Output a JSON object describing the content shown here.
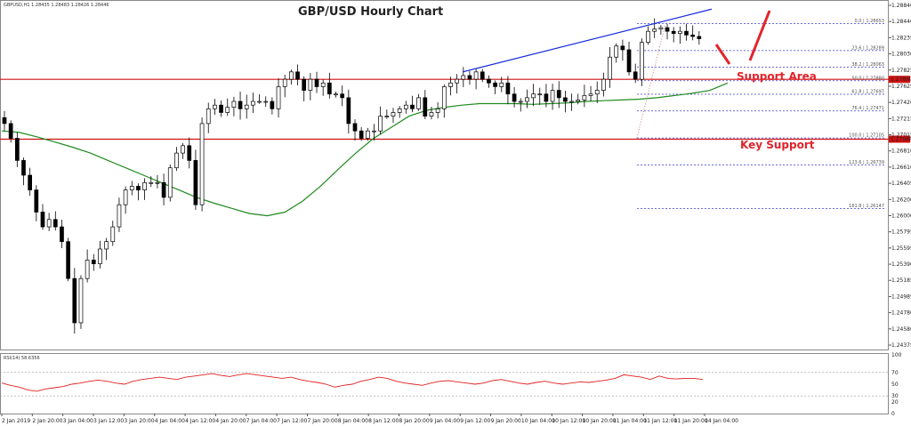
{
  "chart_data": [
    {
      "type": "candlestick",
      "symbol_header": "GBPUSD,H1  1.28435 1.28483 1.28426 1.28446",
      "title": "GBP/USD Hourly Chart",
      "ylim": [
        1.2425,
        1.2895
      ],
      "y_ticks": [
        "1.28840",
        "1.28440",
        "1.28235",
        "1.28030",
        "1.27825",
        "1.27625",
        "1.27420",
        "1.27215",
        "1.27015",
        "1.26810",
        "1.26610",
        "1.26405",
        "1.26200",
        "1.26000",
        "1.25795",
        "1.25595",
        "1.25390",
        "1.25185",
        "1.24985",
        "1.24780",
        "1.24580",
        "1.24375"
      ],
      "x_ticks": [
        "2 Jan 2019",
        "2 Jan 20:00",
        "3 Jan 04:00",
        "3 Jan 12:00",
        "3 Jan 20:00",
        "4 Jan 04:00",
        "4 Jan 12:00",
        "4 Jan 20:00",
        "7 Jan 04:00",
        "7 Jan 12:00",
        "7 Jan 20:00",
        "8 Jan 04:00",
        "8 Jan 12:00",
        "8 Jan 20:00",
        "9 Jan 04:00",
        "9 Jan 12:00",
        "9 Jan 20:00",
        "10 Jan 04:00",
        "10 Jan 12:00",
        "10 Jan 20:00",
        "11 Jan 04:00",
        "11 Jan 12:00",
        "11 Jan 20:00",
        "14 Jan 04:00"
      ],
      "close_path": [
        1.273,
        1.271,
        1.268,
        1.266,
        1.264,
        1.261,
        1.259,
        1.26,
        1.259,
        1.257,
        1.252,
        1.246,
        1.252,
        1.2545,
        1.254,
        1.256,
        1.257,
        1.259,
        1.262,
        1.264,
        1.2645,
        1.264,
        1.265,
        1.265,
        1.265,
        1.263,
        1.267,
        1.269,
        1.27,
        1.268,
        1.262,
        1.273,
        1.275,
        1.2755,
        1.2745,
        1.2752,
        1.276,
        1.275,
        1.2755,
        1.276,
        1.276,
        1.276,
        1.275,
        1.278,
        1.279,
        1.28,
        1.279,
        1.2775,
        1.279,
        1.278,
        1.2785,
        1.277,
        1.277,
        1.2765,
        1.273,
        1.272,
        1.271,
        1.272,
        1.272,
        1.274,
        1.274,
        1.2745,
        1.275,
        1.2755,
        1.275,
        1.2765,
        1.274,
        1.2745,
        1.275,
        1.278,
        1.2785,
        1.279,
        1.2795,
        1.279,
        1.28,
        1.279,
        1.2785,
        1.278,
        1.2785,
        1.277,
        1.276,
        1.276,
        1.2765,
        1.277,
        1.277,
        1.276,
        1.2775,
        1.2765,
        1.276,
        1.276,
        1.2762,
        1.2768,
        1.277,
        1.2775,
        1.279,
        1.282,
        1.2835,
        1.283,
        1.28,
        1.279,
        1.284,
        1.2855,
        1.2858,
        1.286,
        1.2855,
        1.2852,
        1.2855,
        1.285,
        1.2848,
        1.2845
      ],
      "series": [
        {
          "name": "",
          "type": "moving_average",
          "values": [
            1.272,
            1.2718,
            1.2712,
            1.2705,
            1.2698,
            1.269,
            1.268,
            1.267,
            1.266,
            1.265,
            1.264,
            1.263,
            1.2622,
            1.2615,
            1.2608,
            1.2605,
            1.261,
            1.2625,
            1.2645,
            1.2668,
            1.269,
            1.271,
            1.2725,
            1.274,
            1.2748,
            1.2752,
            1.2755,
            1.2757,
            1.2757,
            1.2757,
            1.2756,
            1.2757,
            1.2758,
            1.276,
            1.2761,
            1.2762,
            1.2763,
            1.2765,
            1.2768,
            1.2771,
            1.2775,
            1.2785
          ]
        }
      ],
      "resistance_line": {
        "start": 1.28,
        "end": 1.2885
      },
      "horizontal_levels": [
        {
          "value": 1.27899,
          "label": "1.27899",
          "style": "support-area"
        },
        {
          "value": 1.27088,
          "label": "1.27088",
          "style": "key-support"
        }
      ],
      "fibonacci_levels": [
        {
          "ratio": "0.0",
          "value": 1.28653,
          "label": "0.0 | 1.28653"
        },
        {
          "ratio": "23.6",
          "value": 1.28289,
          "label": "23.6 | 1.28289"
        },
        {
          "ratio": "38.2",
          "value": 1.28063,
          "label": "38.2 | 1.28063"
        },
        {
          "ratio": "50.0",
          "value": 1.2788,
          "label": "50.0 | 1.27880"
        },
        {
          "ratio": "61.8",
          "value": 1.27697,
          "label": "61.8 | 1.27697"
        },
        {
          "ratio": "76.4",
          "value": 1.27471,
          "label": "76.4 | 1.27471"
        },
        {
          "ratio": "100.0",
          "value": 1.27105,
          "label": "100.0 | 1.27105"
        },
        {
          "ratio": "123.6",
          "value": 1.26739,
          "label": "123.6 | 1.26739"
        },
        {
          "ratio": "161.8",
          "value": 1.26147,
          "label": "161.8 | 1.26147"
        }
      ],
      "annotations": [
        "Support Area",
        "Key Support"
      ],
      "grid": false
    },
    {
      "type": "line",
      "indicator_header": "RSI(14) 58.6356",
      "ylim": [
        0,
        100
      ],
      "y_ticks": [
        "100",
        "70",
        "50",
        "30",
        "20",
        "0"
      ],
      "levels": [
        70,
        30
      ],
      "series": [
        {
          "name": "",
          "values": [
            52,
            48,
            45,
            40,
            38,
            42,
            44,
            46,
            50,
            52,
            55,
            57,
            55,
            52,
            50,
            55,
            58,
            60,
            62,
            60,
            58,
            62,
            64,
            66,
            68,
            65,
            63,
            66,
            68,
            66,
            64,
            62,
            60,
            62,
            58,
            55,
            53,
            50,
            45,
            48,
            50,
            55,
            58,
            62,
            60,
            55,
            52,
            50,
            48,
            52,
            55,
            56,
            54,
            52,
            50,
            52,
            56,
            58,
            55,
            52,
            50,
            53,
            55,
            52,
            50,
            52,
            54,
            53,
            55,
            57,
            60,
            66,
            64,
            62,
            58,
            64,
            60,
            59,
            60,
            60,
            58
          ]
        }
      ]
    }
  ],
  "colors": {
    "bull_candle": "#ffffff",
    "bear_candle": "#000000",
    "moving_average": "#1f8a1f",
    "trend_line": "#1a2fd6",
    "horizontal_lines": "#d01010",
    "fib_lines": "#3a3ae0",
    "rsi_line": "#e02020",
    "annotation": "#e0242b"
  }
}
